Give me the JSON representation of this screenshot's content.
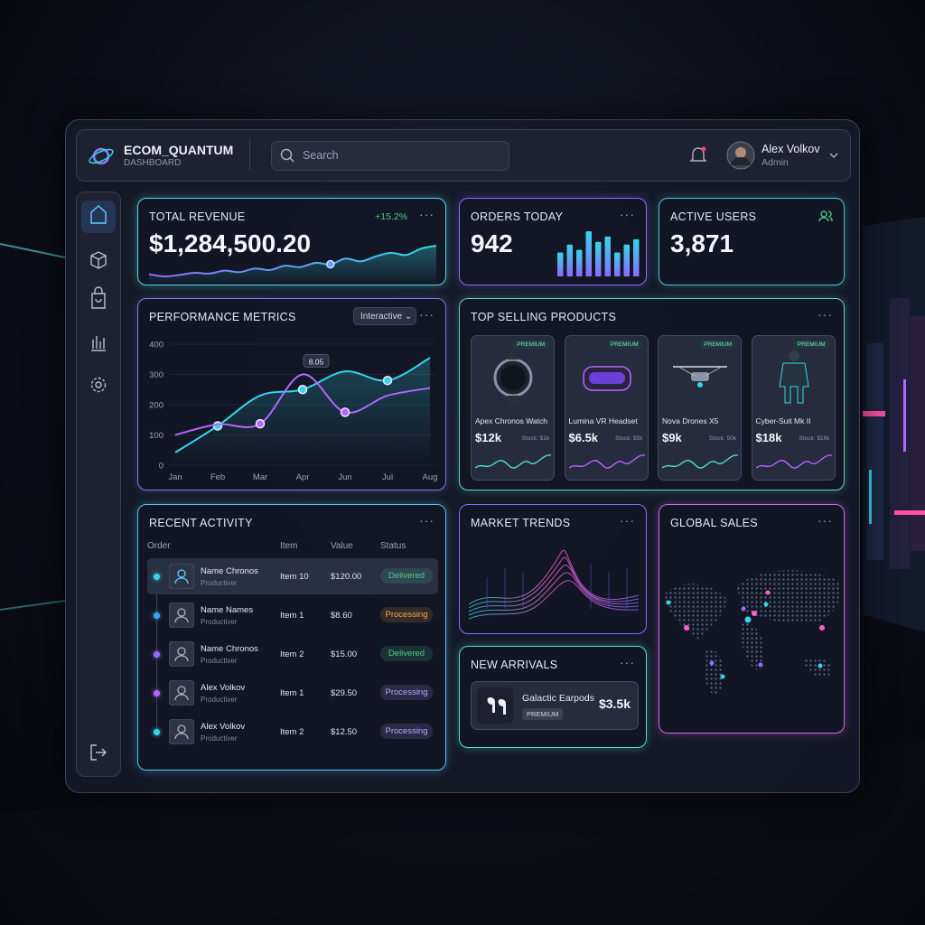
{
  "header": {
    "brand": "ECOM_QUANTUM",
    "subtitle": "DASHBOARD",
    "search_placeholder": "Search",
    "user": {
      "name": "Alex Volkov",
      "role": "Admin"
    }
  },
  "revenue": {
    "title": "TOTAL REVENUE",
    "change": "+15.2%",
    "value": "$1,284,500.20",
    "trend": [
      30,
      27,
      29,
      32,
      31,
      35,
      33,
      38,
      36,
      42,
      40,
      46,
      44,
      52,
      48,
      55,
      60,
      57,
      66,
      70
    ]
  },
  "orders": {
    "title": "ORDERS TODAY",
    "value": "942",
    "bars": [
      45,
      60,
      50,
      85,
      65,
      75,
      45,
      60,
      70
    ]
  },
  "users": {
    "title": "ACTIVE USERS",
    "value": "3,871"
  },
  "performance": {
    "title": "PERFORMANCE METRICS",
    "control": "Interactive",
    "chart_data": {
      "type": "line",
      "categories": [
        "Jan",
        "Feb",
        "Mar",
        "Apr",
        "Jun",
        "Jul",
        "Aug"
      ],
      "ylim": [
        0,
        400
      ],
      "yticks": [
        0,
        100,
        200,
        300,
        400
      ],
      "series": [
        {
          "color": "#35d6e8",
          "values": [
            42,
            130,
            230,
            250,
            310,
            280,
            355
          ]
        },
        {
          "color": "#b566ff",
          "values": [
            100,
            135,
            137,
            300,
            175,
            230,
            255
          ]
        }
      ],
      "annotation": "8.05"
    }
  },
  "products": {
    "title": "TOP SELLING PRODUCTS",
    "items": [
      {
        "badge": "PREMIUM",
        "name": "Apex Chronos Watch",
        "price": "$12k",
        "stock": "Stock: $1k"
      },
      {
        "badge": "PREMIUM",
        "name": "Lumina VR Headset",
        "price": "$6.5k",
        "stock": "Stock: $5k"
      },
      {
        "badge": "PREMIUM",
        "name": "Nova Drones X5",
        "price": "$9k",
        "stock": "Stock: 50k"
      },
      {
        "badge": "PREMIUM",
        "name": "Cyber-Suit Mk II",
        "price": "$18k",
        "stock": "Stock: $16k"
      }
    ]
  },
  "activity": {
    "title": "RECENT ACTIVITY",
    "columns": [
      "Order",
      "Item",
      "Value",
      "Status"
    ],
    "rows": [
      {
        "name": "Name Chronos",
        "sub": "Productiver",
        "item": "Item 10",
        "value": "$120.00",
        "status": "Delivered",
        "color": "#4fd18b",
        "dot": "#35d6e8"
      },
      {
        "name": "Name Names",
        "sub": "Productiver",
        "item": "Item 1",
        "value": "$8.60",
        "status": "Processing",
        "color": "#f0a94a",
        "dot": "#3aa8f0"
      },
      {
        "name": "Name Chronos",
        "sub": "Productiver",
        "item": "Item 2",
        "value": "$15.00",
        "status": "Delivered",
        "color": "#4fd18b",
        "dot": "#9b6bff"
      },
      {
        "name": "Alex Volkov",
        "sub": "Productiver",
        "item": "Item 1",
        "value": "$29.50",
        "status": "Processing",
        "color": "#b9a4ff",
        "dot": "#b566ff"
      },
      {
        "name": "Alex Volkov",
        "sub": "Productiver",
        "item": "Item 2",
        "value": "$12.50",
        "status": "Processing",
        "color": "#b9a4ff",
        "dot": "#35d6e8"
      }
    ]
  },
  "trends": {
    "title": "MARKET TRENDS"
  },
  "arrivals": {
    "title": "NEW ARRIVALS",
    "name": "Galactic Earpods",
    "badge": "PREMIUM",
    "price": "$3.5k"
  },
  "global": {
    "title": "GLOBAL SALES"
  }
}
